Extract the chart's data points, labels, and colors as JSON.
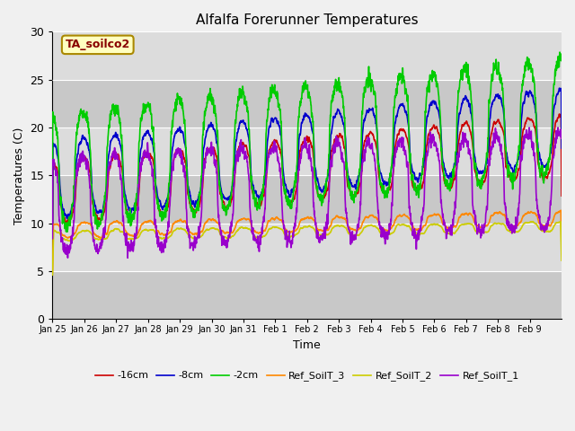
{
  "title": "Alfalfa Forerunner Temperatures",
  "xlabel": "Time",
  "ylabel": "Temperatures (C)",
  "ylim": [
    0,
    30
  ],
  "fig_facecolor": "#f0f0f0",
  "ax_facecolor": "#dcdcdc",
  "legend_label": "TA_soilco2",
  "line_colors": {
    "-16cm": "#cc0000",
    "-8cm": "#0000cc",
    "-2cm": "#00cc00",
    "Ref_SoilT_3": "#ff8800",
    "Ref_SoilT_2": "#cccc00",
    "Ref_SoilT_1": "#9900cc"
  },
  "line_width": 1.2,
  "xtick_labels": [
    "Jan 25",
    "Jan 26",
    "Jan 27",
    "Jan 28",
    "Jan 29",
    "Jan 30",
    "Jan 31",
    "Feb 1",
    "Feb 2",
    "Feb 3",
    "Feb 4",
    "Feb 5",
    "Feb 6",
    "Feb 7",
    "Feb 8",
    "Feb 9"
  ],
  "yticks": [
    0,
    5,
    10,
    15,
    20,
    25,
    30
  ],
  "num_days": 16,
  "pts_per_day": 144,
  "band_colors": [
    "#c8c8c8",
    "#dcdcdc"
  ],
  "grid_color": "#ffffff",
  "ann_facecolor": "#ffffc0",
  "ann_edgecolor": "#aa8800",
  "ann_textcolor": "#880000",
  "figsize": [
    6.4,
    4.8
  ],
  "dpi": 100
}
